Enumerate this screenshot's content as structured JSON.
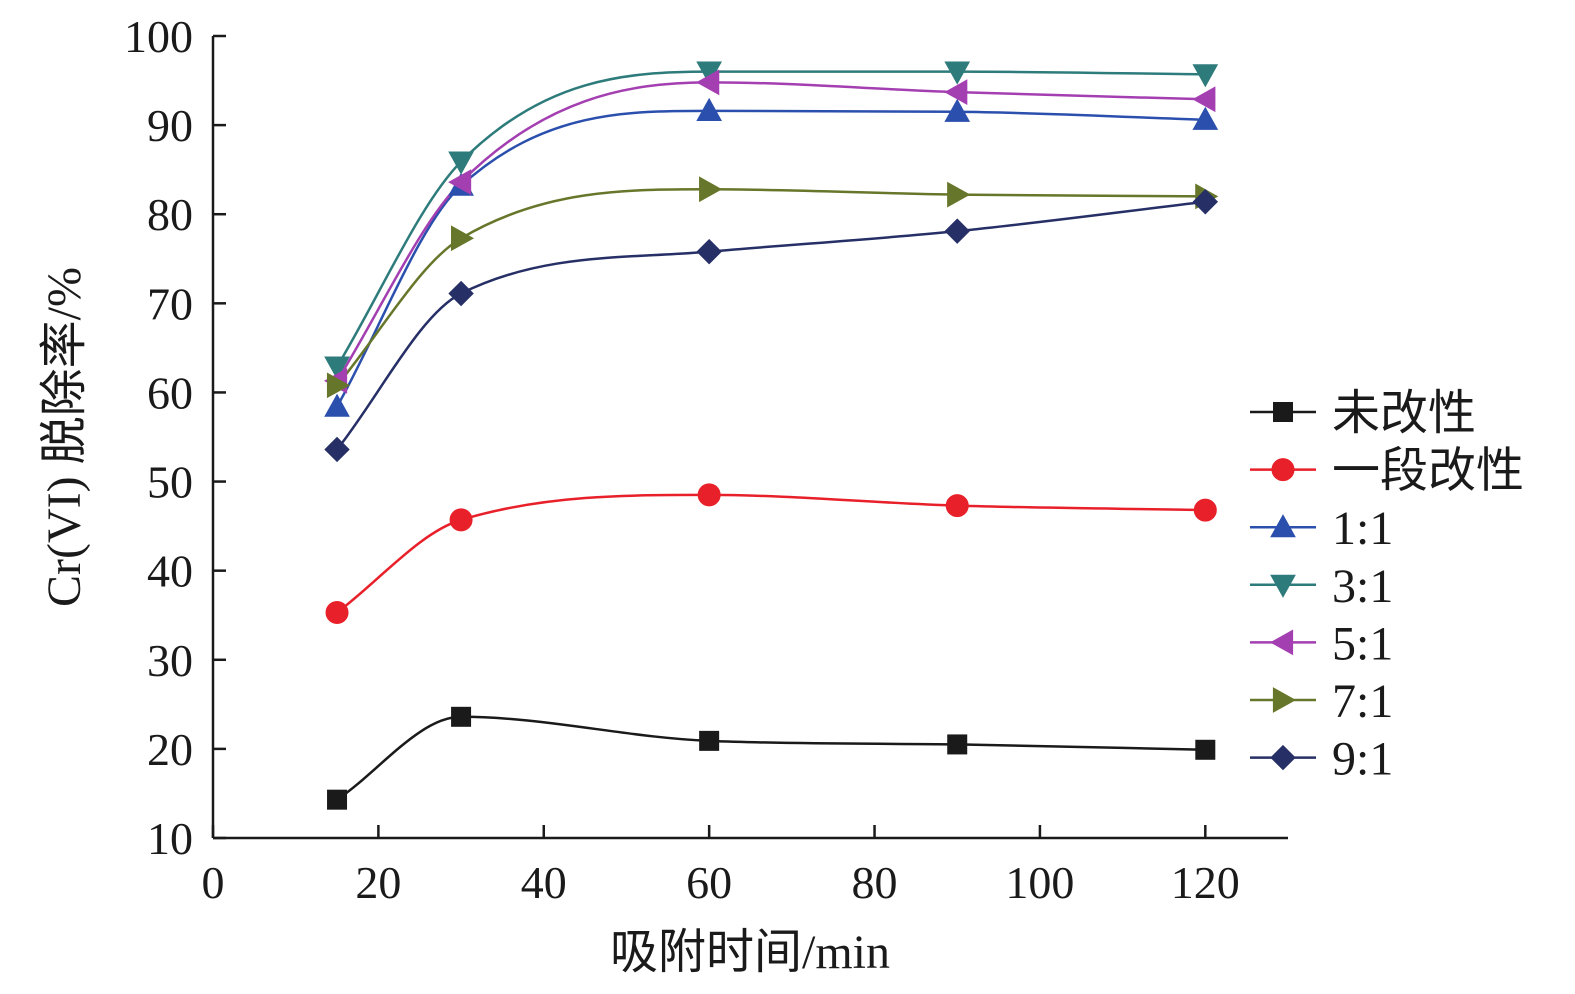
{
  "chart_data": {
    "type": "line",
    "xlabel": "吸附时间/min",
    "ylabel": "Cr(VI) 脱除率/%",
    "xlim": [
      0,
      130
    ],
    "ylim": [
      10,
      100
    ],
    "xticks": [
      0,
      20,
      40,
      60,
      80,
      100,
      120
    ],
    "yticks": [
      10,
      20,
      30,
      40,
      50,
      60,
      70,
      80,
      90,
      100
    ],
    "grid": false,
    "legend_position": "right",
    "x": [
      15,
      30,
      60,
      90,
      120
    ],
    "series": [
      {
        "name": "未改性",
        "values": [
          14.3,
          23.6,
          20.9,
          20.5,
          19.9
        ],
        "color": "#1a1a1a",
        "marker": "square"
      },
      {
        "name": "一段改性",
        "values": [
          35.3,
          45.7,
          48.5,
          47.3,
          46.8
        ],
        "color": "#e8202a",
        "marker": "circle"
      },
      {
        "name": "1:1",
        "values": [
          58.4,
          83.2,
          91.6,
          91.5,
          90.6
        ],
        "color": "#2b4fad",
        "marker": "triangle-up"
      },
      {
        "name": "3:1",
        "values": [
          62.9,
          85.9,
          96.0,
          96.0,
          95.7
        ],
        "color": "#2e7b7c",
        "marker": "triangle-down"
      },
      {
        "name": "5:1",
        "values": [
          61.3,
          83.6,
          94.8,
          93.7,
          92.9
        ],
        "color": "#a43fb2",
        "marker": "triangle-left"
      },
      {
        "name": "7:1",
        "values": [
          60.8,
          77.3,
          82.8,
          82.2,
          82.0
        ],
        "color": "#66762a",
        "marker": "triangle-right"
      },
      {
        "name": "9:1",
        "values": [
          53.6,
          71.1,
          75.8,
          78.1,
          81.4
        ],
        "color": "#262f66",
        "marker": "diamond"
      }
    ]
  }
}
